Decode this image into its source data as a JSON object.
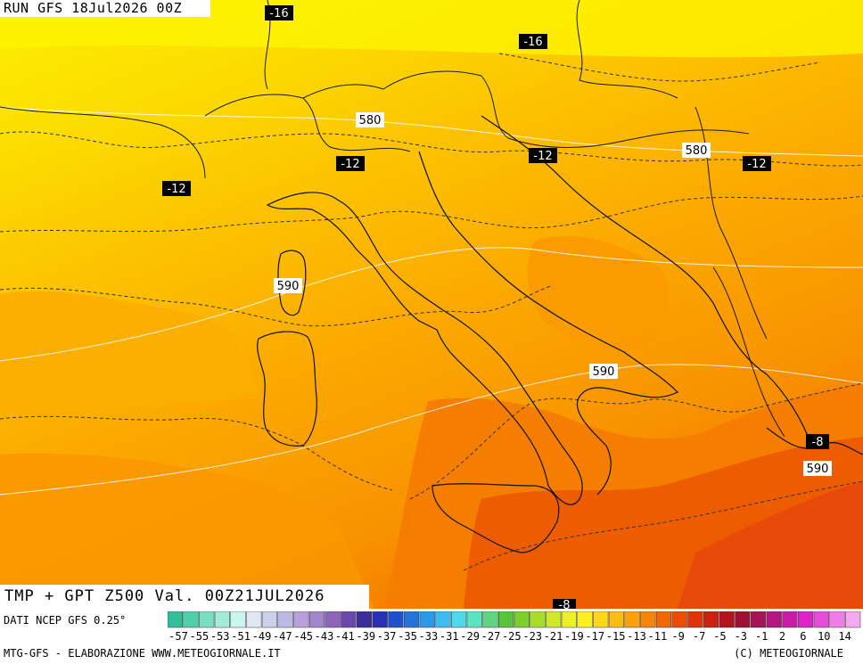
{
  "header": {
    "run_label": "RUN GFS 18Jul2026 00Z"
  },
  "title": "TMP + GPT Z500 Val. 00Z21JUL2026",
  "source": "DATI NCEP GFS 0.25°",
  "footer": {
    "left": "MTG-GFS - ELABORAZIONE WWW.METEOGIORNALE.IT",
    "right": "(C) METEOGIORNALE"
  },
  "temp_labels": [
    {
      "value": "-16"
    },
    {
      "value": "-16"
    },
    {
      "value": "-12"
    },
    {
      "value": "-12"
    },
    {
      "value": "-12"
    },
    {
      "value": "-12"
    },
    {
      "value": "-8"
    },
    {
      "value": "-8"
    }
  ],
  "gpt_labels": [
    {
      "value": "580"
    },
    {
      "value": "580"
    },
    {
      "value": "590"
    },
    {
      "value": "590"
    },
    {
      "value": "590"
    }
  ],
  "colorbar": {
    "tick_labels": [
      "-57",
      "-55",
      "-53",
      "-51",
      "-49",
      "-47",
      "-45",
      "-43",
      "-41",
      "-39",
      "-37",
      "-35",
      "-33",
      "-31",
      "-29",
      "-27",
      "-25",
      "-23",
      "-21",
      "-19",
      "-17",
      "-15",
      "-13",
      "-11",
      "-9",
      "-7",
      "-5",
      "-3",
      "-1",
      "2",
      "6",
      "10",
      "14"
    ],
    "colors": [
      "#2fbf9a",
      "#50d0aa",
      "#78e0c0",
      "#a0ecd8",
      "#c8f6ec",
      "#e0e8f4",
      "#ccd0ec",
      "#bcb8e4",
      "#b8a0dc",
      "#a484cc",
      "#8c64bc",
      "#6c48ac",
      "#3c2c9c",
      "#2830b4",
      "#2050cc",
      "#2474dc",
      "#2c98ec",
      "#3cbcf0",
      "#50d8ec",
      "#5ce4c0",
      "#60d480",
      "#58c43c",
      "#7cd02c",
      "#a8dc28",
      "#d0e828",
      "#ecf028",
      "#fcf020",
      "#fcd818",
      "#fcbc14",
      "#fca00c",
      "#f88408",
      "#f46804",
      "#ec4c04",
      "#e03408",
      "#cc2010",
      "#b41420",
      "#a01034",
      "#a41458",
      "#b41880",
      "#c81ca8",
      "#dc24c8",
      "#e84cdc",
      "#f07ce8",
      "#f4a8f0"
    ]
  }
}
